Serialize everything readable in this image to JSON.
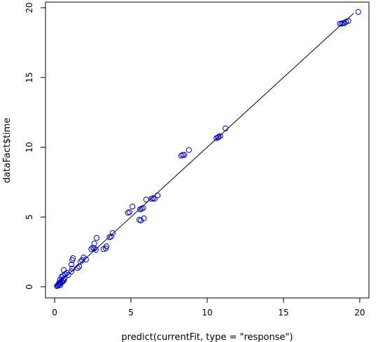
{
  "chart_data": {
    "type": "scatter",
    "title": "",
    "xlabel": "predict(currentFit, type = \"response\")",
    "ylabel": "dataFact$time",
    "xlim": [
      -0.6,
      20.6
    ],
    "ylim": [
      -0.8,
      20.4
    ],
    "xticks": [
      0,
      5,
      10,
      15,
      20
    ],
    "yticks": [
      0,
      5,
      10,
      15,
      20
    ],
    "grid": false,
    "point_color": "#0000cc",
    "line_color": "#000000",
    "reference_line": {
      "intercept": 0,
      "slope": 1
    },
    "series": [
      {
        "points": [
          [
            0.15,
            0.05
          ],
          [
            0.2,
            0.1
          ],
          [
            0.25,
            0.15
          ],
          [
            0.3,
            0.2
          ],
          [
            0.35,
            0.1
          ],
          [
            0.3,
            0.3
          ],
          [
            0.4,
            0.25
          ],
          [
            0.45,
            0.4
          ],
          [
            0.5,
            0.35
          ],
          [
            0.55,
            0.5
          ],
          [
            0.6,
            0.45
          ],
          [
            0.65,
            0.6
          ],
          [
            0.35,
            0.5
          ],
          [
            0.45,
            0.7
          ],
          [
            0.55,
            0.8
          ],
          [
            0.7,
            0.9
          ],
          [
            0.6,
            1.2
          ],
          [
            0.8,
            1.0
          ],
          [
            0.9,
            0.85
          ],
          [
            1.1,
            1.1
          ],
          [
            1.15,
            1.3
          ],
          [
            1.1,
            1.6
          ],
          [
            1.15,
            1.9
          ],
          [
            1.2,
            2.05
          ],
          [
            1.5,
            1.35
          ],
          [
            1.6,
            1.45
          ],
          [
            1.7,
            1.8
          ],
          [
            1.8,
            1.9
          ],
          [
            1.9,
            2.1
          ],
          [
            2.05,
            1.95
          ],
          [
            2.4,
            2.7
          ],
          [
            2.5,
            2.8
          ],
          [
            2.6,
            2.75
          ],
          [
            2.6,
            3.1
          ],
          [
            2.75,
            3.5
          ],
          [
            2.7,
            2.65
          ],
          [
            3.2,
            2.7
          ],
          [
            3.35,
            2.75
          ],
          [
            3.4,
            2.9
          ],
          [
            3.6,
            3.55
          ],
          [
            3.7,
            3.6
          ],
          [
            3.8,
            3.85
          ],
          [
            4.8,
            5.3
          ],
          [
            4.9,
            5.35
          ],
          [
            5.1,
            5.75
          ],
          [
            5.55,
            4.8
          ],
          [
            5.65,
            4.75
          ],
          [
            5.85,
            4.9
          ],
          [
            5.6,
            5.55
          ],
          [
            5.7,
            5.6
          ],
          [
            5.8,
            5.65
          ],
          [
            6.0,
            6.25
          ],
          [
            6.35,
            6.3
          ],
          [
            6.45,
            6.35
          ],
          [
            6.55,
            6.3
          ],
          [
            6.75,
            6.55
          ],
          [
            8.3,
            9.4
          ],
          [
            8.4,
            9.45
          ],
          [
            8.5,
            9.45
          ],
          [
            8.8,
            9.8
          ],
          [
            10.6,
            10.65
          ],
          [
            10.7,
            10.7
          ],
          [
            10.75,
            10.75
          ],
          [
            10.85,
            10.8
          ],
          [
            11.2,
            11.35
          ],
          [
            18.7,
            18.85
          ],
          [
            18.8,
            18.85
          ],
          [
            18.9,
            18.9
          ],
          [
            19.0,
            18.9
          ],
          [
            19.1,
            19.0
          ],
          [
            19.25,
            19.05
          ],
          [
            19.9,
            19.7
          ]
        ]
      }
    ]
  }
}
